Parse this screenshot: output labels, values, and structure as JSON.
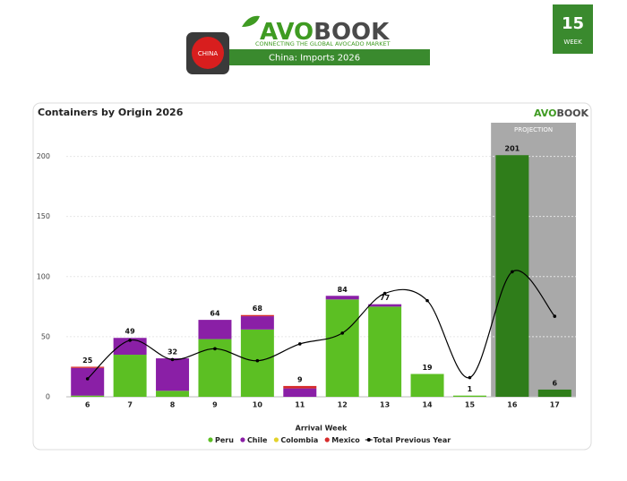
{
  "header": {
    "brand_a": "AVO",
    "brand_b": "BOOK",
    "tagline": "CONNECTING THE GLOBAL AVOCADO MARKET",
    "flag_label": "CHINA",
    "banner": "China: Imports 2026",
    "week_number": "15",
    "week_label": "WEEK"
  },
  "chart_data": {
    "type": "stacked-bar",
    "title": "Containers by Origin 2026",
    "logo_a": "AVO",
    "logo_b": "BOOK",
    "x_label": "Arrival Week",
    "categories": [
      "6",
      "7",
      "8",
      "9",
      "10",
      "11",
      "12",
      "13",
      "14",
      "15",
      "16",
      "17"
    ],
    "series": [
      {
        "name": "Peru",
        "color": "#5cbf23",
        "values": [
          1,
          35,
          5,
          48,
          56,
          0,
          81,
          75,
          19,
          1,
          201,
          6
        ]
      },
      {
        "name": "Chile",
        "color": "#8a1fa6",
        "values": [
          23,
          14,
          27,
          16,
          11,
          7,
          3,
          2,
          0,
          0,
          0,
          0
        ]
      },
      {
        "name": "Colombia",
        "color": "#e3d22b",
        "values": [
          0,
          0,
          0,
          0,
          0,
          0,
          0,
          0,
          0,
          0,
          0,
          0
        ]
      },
      {
        "name": "Mexico",
        "color": "#d62b2b",
        "values": [
          1,
          0,
          0,
          0,
          1,
          2,
          0,
          0,
          0,
          0,
          0,
          0
        ]
      }
    ],
    "totals": [
      25,
      49,
      32,
      64,
      68,
      9,
      84,
      77,
      19,
      1,
      201,
      6
    ],
    "line_series": {
      "name": "Total Previous Year",
      "color": "#000000",
      "values": [
        15,
        47,
        31,
        40,
        30,
        44,
        53,
        86,
        80,
        16,
        104,
        67
      ]
    },
    "projection": {
      "label": "PROJECTION",
      "categories": [
        "16",
        "17"
      ],
      "color": "#2f7d1a",
      "shade": "#a9a9a9"
    },
    "ylim": [
      0,
      228
    ],
    "yticks": [
      0,
      50,
      100,
      150,
      200
    ],
    "grid": true
  }
}
